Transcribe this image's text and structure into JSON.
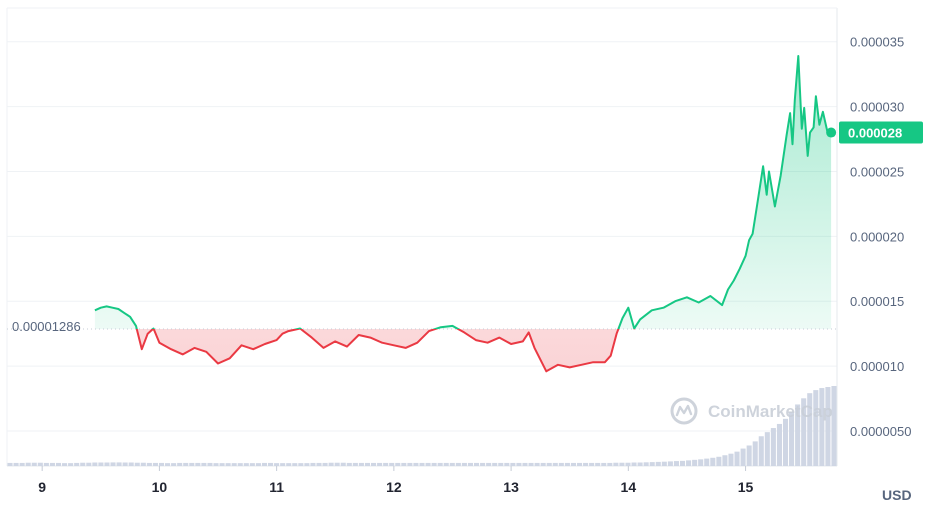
{
  "chart_data": {
    "type": "line",
    "currency_label": "USD",
    "current_price_label": "0.000028",
    "reference_price_label": "0.00001286",
    "reference_value": 1.286e-05,
    "watermark": "CoinMarketCap",
    "x_ticks": [
      "9",
      "10",
      "11",
      "12",
      "13",
      "14",
      "15"
    ],
    "y_ticks": [
      "0.0000050",
      "0.000010",
      "0.000015",
      "0.000020",
      "0.000025",
      "0.000030",
      "0.000035"
    ],
    "y_tick_values": [
      5e-06,
      1e-05,
      1.5e-05,
      2e-05,
      2.5e-05,
      3e-05,
      3.5e-05
    ],
    "ylim": [
      2.3e-06,
      3.76e-05
    ],
    "xlim": [
      8.7,
      15.78
    ],
    "grid": true,
    "colors": {
      "up": "#16c784",
      "down": "#ea3943",
      "volume": "#cfd6e4",
      "grid": "#eff2f5",
      "badge": "#16c784"
    },
    "series": [
      {
        "x": [
          9.45,
          9.5,
          9.55,
          9.6,
          9.65,
          9.7,
          9.75,
          9.8,
          9.85,
          9.9,
          9.95,
          10.0,
          10.1,
          10.2,
          10.3,
          10.4,
          10.5,
          10.6,
          10.7,
          10.8,
          10.9,
          11.0,
          11.05,
          11.1,
          11.2,
          11.3,
          11.4,
          11.5,
          11.6,
          11.7,
          11.8,
          11.9,
          12.0,
          12.1,
          12.2,
          12.3,
          12.4,
          12.5,
          12.6,
          12.7,
          12.8,
          12.9,
          13.0,
          13.1,
          13.15,
          13.2,
          13.3,
          13.4,
          13.5,
          13.6,
          13.7,
          13.8,
          13.85,
          13.9,
          13.95,
          14.0,
          14.05,
          14.1,
          14.2,
          14.3,
          14.4,
          14.5,
          14.6,
          14.7,
          14.8,
          14.85,
          14.9,
          14.95,
          15.0,
          15.03,
          15.06,
          15.1,
          15.15,
          15.18,
          15.2,
          15.25,
          15.3,
          15.35,
          15.38,
          15.4,
          15.42,
          15.45,
          15.48,
          15.5,
          15.53,
          15.55,
          15.58,
          15.6,
          15.63,
          15.66,
          15.7,
          15.73
        ],
        "y": [
          1.43e-05,
          1.45e-05,
          1.46e-05,
          1.45e-05,
          1.44e-05,
          1.41e-05,
          1.38e-05,
          1.31e-05,
          1.13e-05,
          1.25e-05,
          1.29e-05,
          1.18e-05,
          1.13e-05,
          1.09e-05,
          1.14e-05,
          1.11e-05,
          1.02e-05,
          1.06e-05,
          1.16e-05,
          1.13e-05,
          1.17e-05,
          1.2e-05,
          1.25e-05,
          1.27e-05,
          1.29e-05,
          1.22e-05,
          1.14e-05,
          1.19e-05,
          1.15e-05,
          1.24e-05,
          1.22e-05,
          1.18e-05,
          1.16e-05,
          1.14e-05,
          1.18e-05,
          1.27e-05,
          1.3e-05,
          1.31e-05,
          1.26e-05,
          1.2e-05,
          1.18e-05,
          1.22e-05,
          1.17e-05,
          1.19e-05,
          1.26e-05,
          1.14e-05,
          9.6e-06,
          1.01e-05,
          9.9e-06,
          1.01e-05,
          1.03e-05,
          1.03e-05,
          1.08e-05,
          1.25e-05,
          1.37e-05,
          1.45e-05,
          1.29e-05,
          1.36e-05,
          1.43e-05,
          1.45e-05,
          1.5e-05,
          1.53e-05,
          1.49e-05,
          1.54e-05,
          1.47e-05,
          1.59e-05,
          1.66e-05,
          1.75e-05,
          1.85e-05,
          1.97e-05,
          2.02e-05,
          2.25e-05,
          2.54e-05,
          2.32e-05,
          2.5e-05,
          2.23e-05,
          2.47e-05,
          2.78e-05,
          2.95e-05,
          2.71e-05,
          3.05e-05,
          3.39e-05,
          2.83e-05,
          2.99e-05,
          2.62e-05,
          2.8e-05,
          2.84e-05,
          3.08e-05,
          2.86e-05,
          2.96e-05,
          2.8e-05,
          2.8e-05
        ]
      }
    ],
    "volume_relative": [
      0.3,
      0.3,
      0.3,
      0.32,
      0.32,
      0.32,
      0.3,
      0.3,
      0.3,
      0.28,
      0.28,
      0.3,
      0.32,
      0.32,
      0.34,
      0.34,
      0.34,
      0.35,
      0.35,
      0.34,
      0.34,
      0.32,
      0.32,
      0.3,
      0.3,
      0.3,
      0.28,
      0.28,
      0.3,
      0.3,
      0.3,
      0.3,
      0.3,
      0.3,
      0.28,
      0.28,
      0.28,
      0.28,
      0.28,
      0.28,
      0.28,
      0.28,
      0.3,
      0.3,
      0.28,
      0.28,
      0.28,
      0.28,
      0.28,
      0.28,
      0.3,
      0.3,
      0.3,
      0.32,
      0.32,
      0.32,
      0.3,
      0.3,
      0.3,
      0.3,
      0.3,
      0.3,
      0.3,
      0.3,
      0.3,
      0.3,
      0.3,
      0.3,
      0.3,
      0.3,
      0.3,
      0.3,
      0.3,
      0.3,
      0.3,
      0.3,
      0.3,
      0.3,
      0.3,
      0.3,
      0.3,
      0.3,
      0.3,
      0.3,
      0.3,
      0.3,
      0.3,
      0.3,
      0.3,
      0.3,
      0.3,
      0.3,
      0.3,
      0.3,
      0.3,
      0.3,
      0.3,
      0.3,
      0.3,
      0.3,
      0.32,
      0.32,
      0.32,
      0.34,
      0.34,
      0.36,
      0.38,
      0.4,
      0.42,
      0.45,
      0.48,
      0.5,
      0.55,
      0.6,
      0.65,
      0.72,
      0.8,
      0.9,
      1.05,
      1.2,
      1.4,
      1.7,
      2.0,
      2.4,
      2.9,
      3.3,
      3.7,
      4.1,
      4.6,
      5.3,
      6.0,
      6.6,
      7.1,
      7.4,
      7.6,
      7.7,
      7.8
    ]
  }
}
